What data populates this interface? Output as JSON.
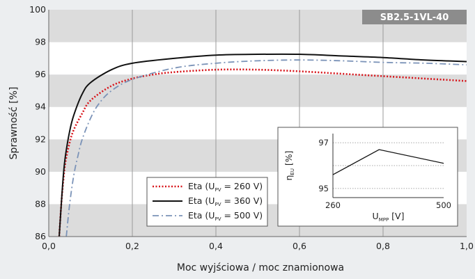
{
  "chart_data": {
    "type": "line",
    "badge": "SB2.5-1VL-40",
    "xlabel": "Moc wyjściowa / moc znamionowa",
    "ylabel": "Sprawność [%]",
    "xlim": [
      0,
      1.0
    ],
    "ylim": [
      86,
      100
    ],
    "x_ticks": [
      "0,0",
      "0,2",
      "0,4",
      "0,6",
      "0,8",
      "1,0"
    ],
    "y_ticks": [
      "86",
      "88",
      "90",
      "92",
      "94",
      "96",
      "98",
      "100"
    ],
    "grid": true,
    "legend_position": "bottom-center",
    "series": [
      {
        "legend_main": "Eta (U",
        "legend_sub": "PV",
        "legend_rest": " = 260 V)",
        "color": "#d7141a",
        "style": "dotted",
        "points": [
          [
            0.025,
            86
          ],
          [
            0.03,
            88
          ],
          [
            0.035,
            89.5
          ],
          [
            0.04,
            90.6
          ],
          [
            0.05,
            91.8
          ],
          [
            0.06,
            92.6
          ],
          [
            0.08,
            93.6
          ],
          [
            0.1,
            94.4
          ],
          [
            0.15,
            95.3
          ],
          [
            0.2,
            95.75
          ],
          [
            0.25,
            96.0
          ],
          [
            0.3,
            96.15
          ],
          [
            0.4,
            96.3
          ],
          [
            0.5,
            96.3
          ],
          [
            0.6,
            96.2
          ],
          [
            0.7,
            96.05
          ],
          [
            0.8,
            95.9
          ],
          [
            0.9,
            95.75
          ],
          [
            1.0,
            95.6
          ]
        ]
      },
      {
        "legend_main": "Eta (U",
        "legend_sub": "PV",
        "legend_rest": " = 360 V)",
        "color": "#111111",
        "style": "solid",
        "points": [
          [
            0.025,
            86
          ],
          [
            0.03,
            88
          ],
          [
            0.035,
            89.8
          ],
          [
            0.04,
            91.0
          ],
          [
            0.05,
            92.5
          ],
          [
            0.06,
            93.5
          ],
          [
            0.08,
            94.8
          ],
          [
            0.1,
            95.5
          ],
          [
            0.15,
            96.3
          ],
          [
            0.2,
            96.7
          ],
          [
            0.3,
            97.0
          ],
          [
            0.4,
            97.2
          ],
          [
            0.5,
            97.25
          ],
          [
            0.6,
            97.25
          ],
          [
            0.7,
            97.15
          ],
          [
            0.8,
            97.05
          ],
          [
            0.9,
            96.9
          ],
          [
            1.0,
            96.8
          ]
        ]
      },
      {
        "legend_main": "Eta (U",
        "legend_sub": "PV",
        "legend_rest": " = 500 V)",
        "color": "#7b93b8",
        "style": "dashdot",
        "points": [
          [
            0.042,
            86
          ],
          [
            0.05,
            88
          ],
          [
            0.06,
            89.8
          ],
          [
            0.07,
            91.0
          ],
          [
            0.08,
            92.0
          ],
          [
            0.1,
            93.3
          ],
          [
            0.12,
            94.2
          ],
          [
            0.15,
            95.0
          ],
          [
            0.2,
            95.7
          ],
          [
            0.3,
            96.4
          ],
          [
            0.4,
            96.7
          ],
          [
            0.5,
            96.85
          ],
          [
            0.6,
            96.9
          ],
          [
            0.7,
            96.85
          ],
          [
            0.8,
            96.75
          ],
          [
            0.9,
            96.7
          ],
          [
            1.0,
            96.6
          ]
        ]
      }
    ],
    "inset": {
      "ylabel_main": "η",
      "ylabel_sub": "EU",
      "ylabel_rest": " [%]",
      "xlabel_main": "U",
      "xlabel_sub": "MPP",
      "xlabel_rest": " [V]",
      "x_ticks": [
        "260",
        "500"
      ],
      "y_ticks": [
        "97",
        "95"
      ],
      "xlim": [
        260,
        500
      ],
      "ylim": [
        94.6,
        97.4
      ],
      "points": [
        [
          260,
          95.6
        ],
        [
          360,
          96.7
        ],
        [
          500,
          96.1
        ]
      ]
    }
  }
}
